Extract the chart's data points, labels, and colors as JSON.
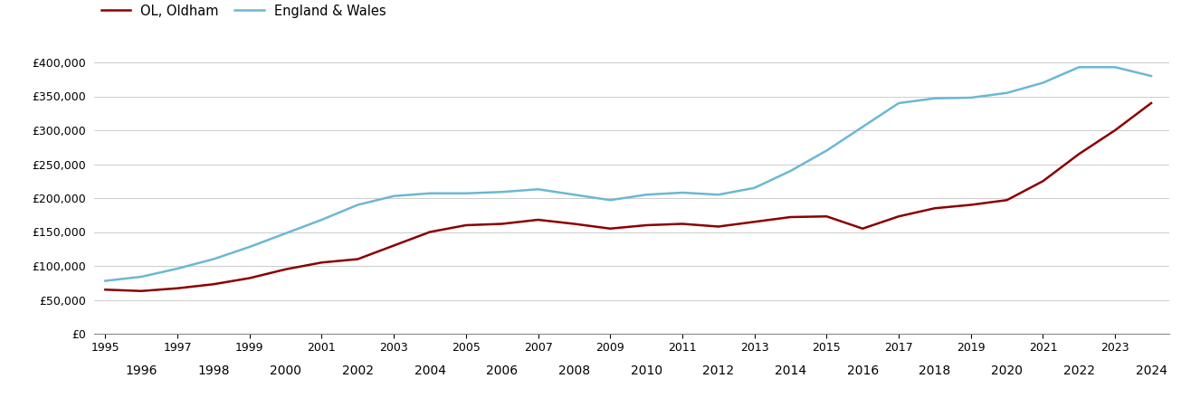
{
  "years": [
    1995,
    1996,
    1997,
    1998,
    1999,
    2000,
    2001,
    2002,
    2003,
    2004,
    2005,
    2006,
    2007,
    2008,
    2009,
    2010,
    2011,
    2012,
    2013,
    2014,
    2015,
    2016,
    2017,
    2018,
    2019,
    2020,
    2021,
    2022,
    2023,
    2024
  ],
  "oldham": [
    65000,
    63000,
    67000,
    73000,
    82000,
    95000,
    105000,
    110000,
    130000,
    150000,
    160000,
    162000,
    168000,
    162000,
    155000,
    160000,
    162000,
    158000,
    165000,
    172000,
    173000,
    155000,
    173000,
    185000,
    190000,
    197000,
    225000,
    265000,
    300000,
    340000
  ],
  "england_wales": [
    78000,
    84000,
    96000,
    110000,
    128000,
    148000,
    168000,
    190000,
    203000,
    207000,
    207000,
    209000,
    213000,
    205000,
    197000,
    205000,
    208000,
    205000,
    215000,
    240000,
    270000,
    305000,
    340000,
    347000,
    348000,
    355000,
    370000,
    393000,
    393000,
    380000
  ],
  "oldham_color": "#8B0000",
  "ew_color": "#6BB8D4",
  "oldham_label": "OL, Oldham",
  "ew_label": "England & Wales",
  "ylim": [
    0,
    420000
  ],
  "yticks": [
    0,
    50000,
    100000,
    150000,
    200000,
    250000,
    300000,
    350000,
    400000
  ],
  "xlim_min": 1994.7,
  "xlim_max": 2024.5,
  "background_color": "#ffffff",
  "grid_color": "#cccccc",
  "line_width": 1.8,
  "legend_fontsize": 10.5,
  "tick_fontsize": 9.0
}
